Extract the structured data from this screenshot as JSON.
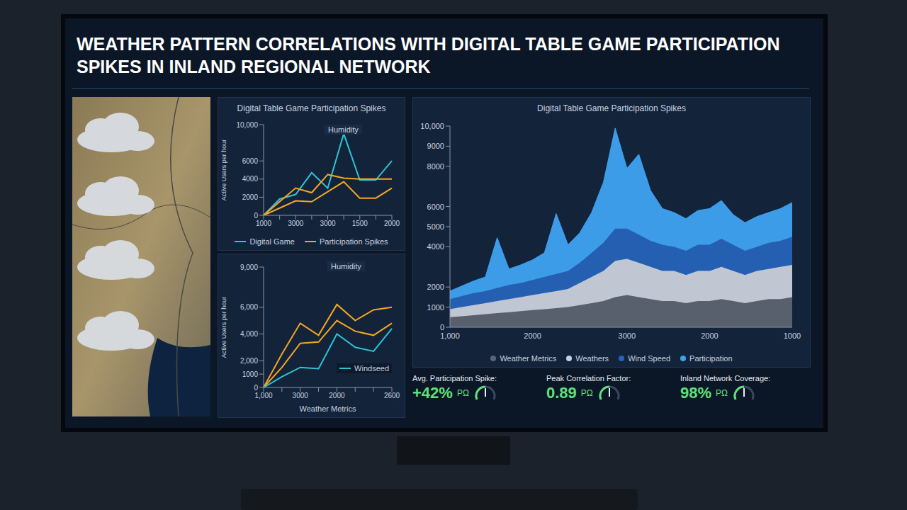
{
  "title": "WEATHER PATTERN CORRELATIONS WITH DIGITAL TABLE GAME PARTICIPATION SPIKES IN INLAND REGIONAL NETWORK",
  "chart_data": [
    {
      "type": "line",
      "title": "Digital Table Game Participation Spikes",
      "annotation": "Humidity",
      "y_label": "Active Users per hour",
      "categories": [
        "1000",
        null,
        "3000",
        null,
        "3000",
        null,
        "1500",
        null,
        "2000"
      ],
      "series": [
        {
          "name": "Digital Game",
          "color": "#2ec4d6",
          "values": [
            0,
            1800,
            2300,
            4700,
            3000,
            9000,
            3900,
            3900,
            6000
          ]
        },
        {
          "name": "Participation Spikes",
          "color": "#f5a623",
          "values": [
            0,
            1500,
            3000,
            2500,
            4500,
            4100,
            4000,
            4000,
            4000
          ]
        },
        {
          "color": "#f5a623",
          "values": [
            0,
            800,
            1600,
            1500,
            2600,
            3700,
            1900,
            1900,
            3000
          ]
        }
      ],
      "ylim": [
        0,
        10000
      ],
      "yticks": [
        0,
        2000,
        4000,
        6000,
        {
          "value": 10000,
          "label": "10,000"
        }
      ],
      "grid": false,
      "legend": "lower center"
    },
    {
      "type": "line",
      "annotation": "Humidity",
      "y_label": "Active Users per hour",
      "x_label": "Weather Metrics",
      "categories": [
        "1,000",
        null,
        "3000",
        null,
        "2000",
        null,
        null,
        "2600"
      ],
      "series": [
        {
          "color": "#f5a623",
          "values": [
            0,
            2500,
            4800,
            3900,
            6200,
            5000,
            5800,
            6000
          ]
        },
        {
          "color": "#f5a623",
          "values": [
            0,
            1500,
            3300,
            3400,
            5000,
            4200,
            3900,
            4800
          ]
        },
        {
          "name": "Windseed",
          "color": "#2ec4d6",
          "values": [
            0,
            800,
            1500,
            1400,
            4000,
            3000,
            2700,
            4400
          ]
        }
      ],
      "ylim": [
        0,
        9000
      ],
      "yticks": [
        0,
        1000,
        {
          "value": 2000,
          "label": "2,000"
        },
        {
          "value": 4000,
          "label": "4,000"
        },
        {
          "value": 6000,
          "label": "6,000"
        },
        {
          "value": 9000,
          "label": "9,000"
        }
      ],
      "grid": false,
      "legend": "lower right"
    },
    {
      "type": "area",
      "stacked": true,
      "title": "Digital Table Game Participation Spikes",
      "categories": [
        "1,000",
        null,
        null,
        null,
        null,
        null,
        null,
        "2000",
        null,
        null,
        null,
        null,
        null,
        null,
        null,
        "3000",
        null,
        null,
        null,
        null,
        null,
        null,
        "2000",
        null,
        null,
        null,
        null,
        null,
        null,
        "1000"
      ],
      "series": [
        {
          "name": "Weather Metrics",
          "color": "#5d6470",
          "values": [
            500,
            550,
            600,
            650,
            700,
            750,
            800,
            850,
            900,
            950,
            1000,
            1100,
            1200,
            1300,
            1500,
            1600,
            1500,
            1400,
            1300,
            1300,
            1200,
            1300,
            1300,
            1400,
            1300,
            1200,
            1300,
            1400,
            1400,
            1500
          ]
        },
        {
          "name": "Weathers",
          "color": "#c9d1db",
          "values": [
            400,
            450,
            500,
            550,
            600,
            650,
            700,
            750,
            800,
            850,
            900,
            1100,
            1300,
            1500,
            1800,
            1800,
            1700,
            1600,
            1500,
            1500,
            1400,
            1500,
            1500,
            1600,
            1500,
            1400,
            1500,
            1500,
            1600,
            1600
          ]
        },
        {
          "name": "Wind Speed",
          "color": "#2563b8",
          "values": [
            500,
            550,
            600,
            600,
            650,
            700,
            700,
            750,
            800,
            850,
            900,
            1000,
            1200,
            1400,
            1600,
            1500,
            1400,
            1300,
            1300,
            1200,
            1200,
            1300,
            1300,
            1400,
            1300,
            1200,
            1200,
            1300,
            1300,
            1400
          ]
        },
        {
          "name": "Participation",
          "color": "#3fa3f0",
          "values": [
            400,
            500,
            600,
            700,
            2500,
            800,
            900,
            1000,
            1200,
            3000,
            1300,
            1500,
            2000,
            3000,
            5000,
            3000,
            4000,
            2500,
            1800,
            1700,
            1600,
            1700,
            1800,
            1900,
            1500,
            1400,
            1500,
            1500,
            1600,
            1700
          ]
        }
      ],
      "ylim": [
        0,
        10000
      ],
      "yticks": [
        0,
        1000,
        2000,
        4000,
        5000,
        6000,
        8000,
        9000,
        {
          "value": 10000,
          "label": "10,000"
        }
      ],
      "grid": false,
      "legend": "lower center"
    }
  ],
  "stats": [
    {
      "label": "Avg. Participation Spike:",
      "value": "+42%",
      "suffix": "PΩ"
    },
    {
      "label": "Peak Correlation Factor:",
      "value": "0.89",
      "suffix": "PΩ"
    },
    {
      "label": "Inland Network Coverage:",
      "value": "98%",
      "suffix": "PΩ"
    }
  ]
}
